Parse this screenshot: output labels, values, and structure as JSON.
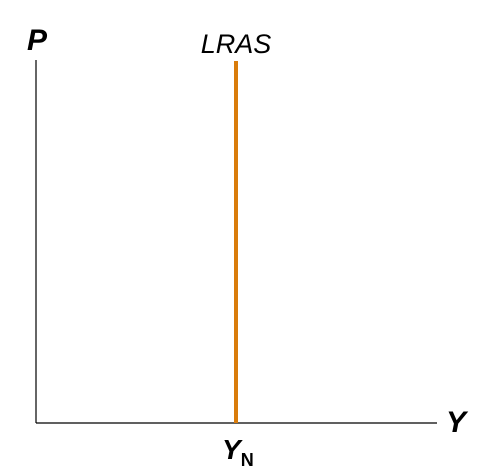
{
  "axes": {
    "y_label": "P",
    "x_label": "Y"
  },
  "curve": {
    "name": "LRAS",
    "color": "#d97c0b"
  },
  "tick": {
    "main": "Y",
    "subscript": "N"
  }
}
